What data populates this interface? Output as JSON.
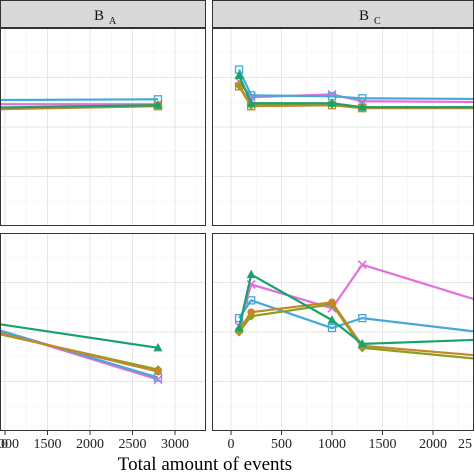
{
  "chart_data": {
    "type": "line",
    "xlabel": "Total amount of events",
    "x_ticks": [
      0,
      500,
      1000,
      1500,
      2000,
      2500,
      3000
    ],
    "x_tick_labels_left": [
      "0",
      "1000",
      "1500",
      "2000",
      "2500",
      "3000"
    ],
    "x_tick_labels_right": [
      "0",
      "500",
      "1000",
      "1500",
      "2000",
      "25"
    ],
    "xlim": [
      -100,
      3050
    ],
    "ylim": [
      0,
      1
    ],
    "grid": true,
    "colors": {
      "magenta": "#E36FDB",
      "blue": "#45A8D8",
      "green": "#18A36C",
      "olive": "#8AA01F",
      "orange": "#C7862A"
    },
    "facets": [
      {
        "id": "top-left",
        "strip_main": "B",
        "strip_sub": "A",
        "series": [
          {
            "color": "magenta",
            "marker": "x",
            "points": [
              [
                100,
                0.6
              ],
              [
                300,
                0.615
              ],
              [
                2800,
                0.615
              ]
            ]
          },
          {
            "color": "blue",
            "marker": "square",
            "points": [
              [
                100,
                0.645
              ],
              [
                300,
                0.635
              ],
              [
                2800,
                0.64
              ]
            ]
          },
          {
            "color": "olive",
            "marker": "diamond",
            "points": [
              [
                100,
                0.615
              ],
              [
                300,
                0.59
              ],
              [
                2800,
                0.61
              ]
            ]
          },
          {
            "color": "orange",
            "marker": "square",
            "points": [
              [
                100,
                0.61
              ],
              [
                300,
                0.585
              ],
              [
                2800,
                0.605
              ]
            ]
          },
          {
            "color": "green",
            "marker": "triangle",
            "points": [
              [
                100,
                0.62
              ],
              [
                300,
                0.595
              ],
              [
                2800,
                0.61
              ]
            ]
          }
        ]
      },
      {
        "id": "top-right",
        "strip_main": "B",
        "strip_sub": "C",
        "series": [
          {
            "color": "magenta",
            "marker": "x",
            "points": [
              [
                80,
                0.73
              ],
              [
                200,
                0.65
              ],
              [
                1000,
                0.665
              ],
              [
                1300,
                0.63
              ],
              [
                2950,
                0.625
              ]
            ]
          },
          {
            "color": "blue",
            "marker": "square",
            "points": [
              [
                80,
                0.79
              ],
              [
                200,
                0.66
              ],
              [
                1000,
                0.655
              ],
              [
                1300,
                0.645
              ],
              [
                2950,
                0.64
              ]
            ]
          },
          {
            "color": "olive",
            "marker": "diamond",
            "points": [
              [
                80,
                0.71
              ],
              [
                200,
                0.61
              ],
              [
                1000,
                0.615
              ],
              [
                1300,
                0.6
              ],
              [
                2950,
                0.6
              ]
            ]
          },
          {
            "color": "orange",
            "marker": "square",
            "points": [
              [
                80,
                0.705
              ],
              [
                200,
                0.605
              ],
              [
                1000,
                0.61
              ],
              [
                1300,
                0.595
              ],
              [
                2950,
                0.595
              ]
            ]
          },
          {
            "color": "green",
            "marker": "triangle",
            "points": [
              [
                80,
                0.76
              ],
              [
                200,
                0.62
              ],
              [
                1000,
                0.62
              ],
              [
                1300,
                0.6
              ],
              [
                2950,
                0.6
              ]
            ]
          }
        ]
      },
      {
        "id": "bottom-left",
        "strip_main": "",
        "strip_sub": "",
        "series": [
          {
            "color": "magenta",
            "marker": "x",
            "points": [
              [
                100,
                0.61
              ],
              [
                300,
                0.59
              ],
              [
                2800,
                0.26
              ]
            ]
          },
          {
            "color": "blue",
            "marker": "square",
            "points": [
              [
                100,
                0.6
              ],
              [
                300,
                0.59
              ],
              [
                2800,
                0.27
              ]
            ]
          },
          {
            "color": "olive",
            "marker": "diamond",
            "points": [
              [
                100,
                0.63
              ],
              [
                300,
                0.55
              ],
              [
                2800,
                0.31
              ]
            ]
          },
          {
            "color": "orange",
            "marker": "circle",
            "points": [
              [
                100,
                0.62
              ],
              [
                300,
                0.56
              ],
              [
                2800,
                0.3
              ]
            ]
          },
          {
            "color": "green",
            "marker": "triangle",
            "points": [
              [
                100,
                0.66
              ],
              [
                300,
                0.58
              ],
              [
                2800,
                0.42
              ]
            ]
          }
        ]
      },
      {
        "id": "bottom-right",
        "strip_main": "",
        "strip_sub": "",
        "series": [
          {
            "color": "magenta",
            "marker": "x",
            "points": [
              [
                80,
                0.53
              ],
              [
                200,
                0.74
              ],
              [
                1000,
                0.62
              ],
              [
                1300,
                0.84
              ],
              [
                2950,
                0.58
              ]
            ]
          },
          {
            "color": "blue",
            "marker": "square",
            "points": [
              [
                80,
                0.57
              ],
              [
                200,
                0.66
              ],
              [
                1000,
                0.52
              ],
              [
                1300,
                0.57
              ],
              [
                2950,
                0.47
              ]
            ]
          },
          {
            "color": "olive",
            "marker": "diamond",
            "points": [
              [
                80,
                0.5
              ],
              [
                200,
                0.58
              ],
              [
                1000,
                0.64
              ],
              [
                1300,
                0.42
              ],
              [
                2950,
                0.34
              ]
            ]
          },
          {
            "color": "orange",
            "marker": "circle",
            "points": [
              [
                80,
                0.51
              ],
              [
                200,
                0.6
              ],
              [
                1000,
                0.65
              ],
              [
                1300,
                0.43
              ],
              [
                2950,
                0.36
              ]
            ]
          },
          {
            "color": "green",
            "marker": "triangle",
            "points": [
              [
                80,
                0.52
              ],
              [
                200,
                0.79
              ],
              [
                1000,
                0.56
              ],
              [
                1300,
                0.44
              ],
              [
                2950,
                0.47
              ]
            ]
          }
        ]
      }
    ]
  }
}
